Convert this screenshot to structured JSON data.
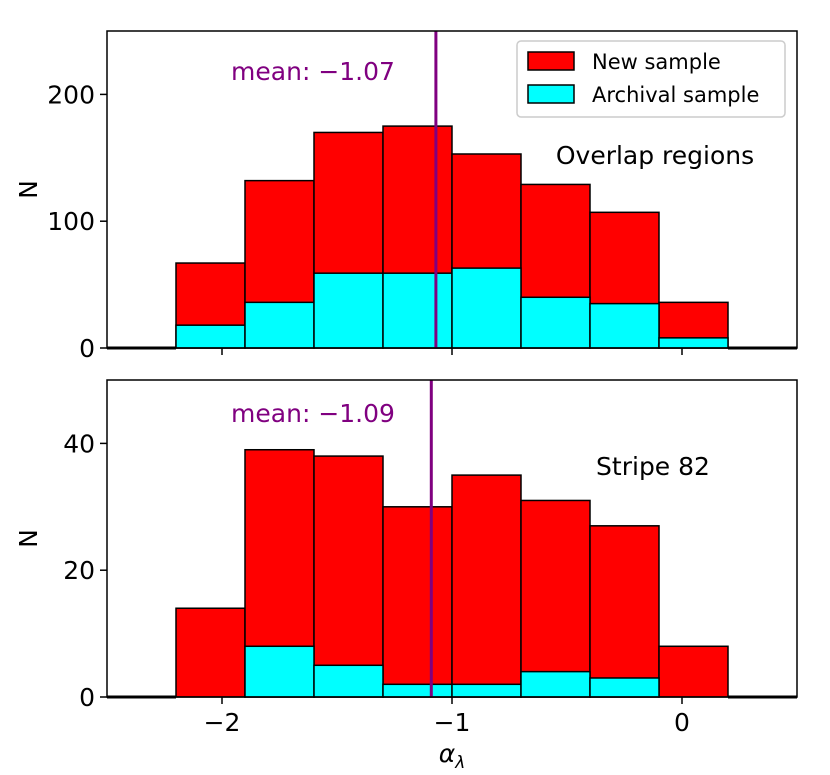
{
  "chart_data": [
    {
      "type": "bar",
      "panel": "top",
      "bin_edges": [
        -2.2,
        -1.9,
        -1.6,
        -1.3,
        -1.0,
        -0.7,
        -0.4,
        -0.1,
        0.2
      ],
      "series": [
        {
          "name": "New sample",
          "color": "#ff0000",
          "values": [
            67,
            132,
            170,
            175,
            153,
            129,
            107,
            36
          ]
        },
        {
          "name": "Archival sample",
          "color": "#00ffff",
          "values": [
            18,
            36,
            59,
            59,
            63,
            40,
            35,
            8
          ]
        }
      ],
      "mean": {
        "value": -1.07,
        "label": "mean: −1.07",
        "color": "#800080"
      },
      "annotation": "Overlap regions",
      "ylabel": "N",
      "xlim": [
        -2.5,
        0.5
      ],
      "ylim": [
        0,
        250
      ],
      "yticks": [
        {
          "v": 0,
          "label": "0"
        },
        {
          "v": 100,
          "label": "100"
        },
        {
          "v": 200,
          "label": "200"
        }
      ],
      "legend": {
        "placement": "top-right",
        "entries": [
          "New sample",
          "Archival sample"
        ]
      }
    },
    {
      "type": "bar",
      "panel": "bottom",
      "bin_edges": [
        -2.2,
        -1.9,
        -1.6,
        -1.3,
        -1.0,
        -0.7,
        -0.4,
        -0.1,
        0.2
      ],
      "series": [
        {
          "name": "New sample",
          "color": "#ff0000",
          "values": [
            14,
            39,
            38,
            30,
            35,
            31,
            27,
            8
          ]
        },
        {
          "name": "Archival sample",
          "color": "#00ffff",
          "values": [
            0,
            8,
            5,
            2,
            2,
            4,
            3,
            0
          ]
        }
      ],
      "mean": {
        "value": -1.09,
        "label": "mean: −1.09",
        "color": "#800080"
      },
      "annotation": "Stripe 82",
      "ylabel": "N",
      "xlabel": "αλ",
      "xlim": [
        -2.5,
        0.5
      ],
      "ylim": [
        0,
        50
      ],
      "yticks": [
        {
          "v": 0,
          "label": "0"
        },
        {
          "v": 20,
          "label": "20"
        },
        {
          "v": 40,
          "label": "40"
        }
      ],
      "xticks": [
        {
          "v": -2,
          "label": "−2"
        },
        {
          "v": -1,
          "label": "−1"
        },
        {
          "v": 0,
          "label": "0"
        }
      ]
    }
  ]
}
